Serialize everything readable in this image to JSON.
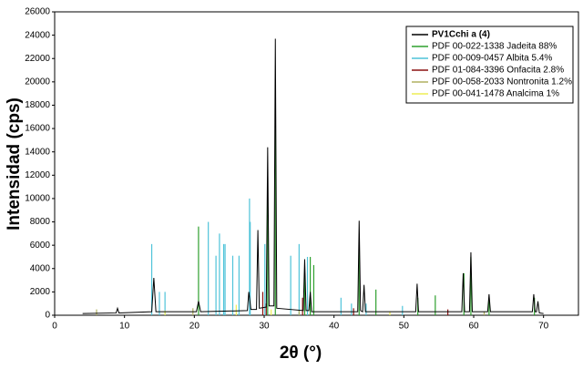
{
  "chart_data": {
    "type": "line",
    "x_label": "2θ (°)",
    "y_label": "Intensidad (cps)",
    "xlim": [
      0,
      75
    ],
    "xticks": [
      0,
      10,
      20,
      30,
      40,
      50,
      60,
      70
    ],
    "ylim": [
      0,
      26000
    ],
    "yticks": [
      0,
      2000,
      4000,
      6000,
      8000,
      10000,
      12000,
      14000,
      16000,
      18000,
      20000,
      22000,
      24000,
      26000
    ],
    "legend_position": "upper right",
    "series": [
      {
        "name": "PV1Cchi a (4)",
        "color": "#000000",
        "style": "line",
        "x": [
          4,
          8.8,
          9.0,
          9.2,
          13.9,
          14.2,
          14.5,
          20.3,
          20.6,
          20.9,
          27.6,
          27.8,
          28.1,
          28.9,
          29.1,
          29.3,
          30.3,
          30.5,
          30.7,
          31.4,
          31.6,
          31.8,
          35.6,
          35.8,
          36.0,
          36.4,
          36.6,
          36.8,
          43.4,
          43.6,
          43.8,
          44.1,
          44.3,
          44.5,
          51.7,
          51.9,
          52.1,
          58.3,
          58.5,
          58.7,
          59.4,
          59.6,
          59.8,
          62.0,
          62.2,
          62.4,
          68.4,
          68.6,
          68.8,
          69.0,
          69.2,
          69.4,
          70
        ],
        "values": [
          150,
          200,
          600,
          200,
          300,
          3200,
          300,
          300,
          1200,
          300,
          400,
          2000,
          500,
          500,
          7300,
          600,
          700,
          14400,
          800,
          800,
          23700,
          600,
          400,
          4800,
          400,
          400,
          2000,
          300,
          300,
          8100,
          400,
          300,
          2600,
          300,
          300,
          2700,
          300,
          300,
          3600,
          300,
          300,
          5400,
          300,
          300,
          1800,
          300,
          300,
          1800,
          300,
          300,
          1200,
          200,
          150
        ]
      },
      {
        "name": "PDF 00-022-1338 Jadeita 88%",
        "color": "#2ea02e",
        "style": "stick",
        "x": [
          20.6,
          30.5,
          31.6,
          35.8,
          36.6,
          37.1,
          43.6,
          46.0,
          52.0,
          54.5,
          58.6,
          59.6,
          62.2,
          68.7
        ],
        "values": [
          7600,
          11000,
          16900,
          3600,
          5000,
          4300,
          6200,
          2200,
          1500,
          1700,
          3600,
          5000,
          1500,
          1500
        ]
      },
      {
        "name": "PDF 00-009-0457 Albita 5.4%",
        "color": "#4fc3d9",
        "style": "stick",
        "x": [
          13.9,
          15.0,
          15.8,
          22.0,
          23.1,
          23.6,
          24.2,
          24.4,
          25.5,
          26.4,
          27.9,
          28.0,
          30.1,
          33.8,
          35.0,
          36.2,
          41.0,
          42.5,
          44.6,
          49.8
        ],
        "values": [
          6100,
          2000,
          2000,
          8000,
          5100,
          7000,
          6100,
          6100,
          5100,
          5100,
          10000,
          8000,
          6100,
          5100,
          6100,
          5000,
          1500,
          1000,
          1000,
          800
        ]
      },
      {
        "name": "PDF 01-084-3396 Onfacita 2.8%",
        "color": "#8b1010",
        "style": "stick",
        "x": [
          29.8,
          30.3,
          35.5,
          42.8,
          56.3
        ],
        "values": [
          2000,
          1000,
          1500,
          600,
          500
        ]
      },
      {
        "name": "PDF 00-058-2033 Nontronita 1.2%",
        "color": "#b0b060",
        "style": "stick",
        "x": [
          6.0,
          19.8,
          35.0,
          61.5
        ],
        "values": [
          500,
          600,
          400,
          300
        ]
      },
      {
        "name": "PDF 00-041-1478 Analcima 1%",
        "color": "#eeee55",
        "style": "stick",
        "x": [
          15.8,
          26.0,
          31.0,
          48.0
        ],
        "values": [
          400,
          900,
          500,
          300
        ]
      }
    ]
  }
}
